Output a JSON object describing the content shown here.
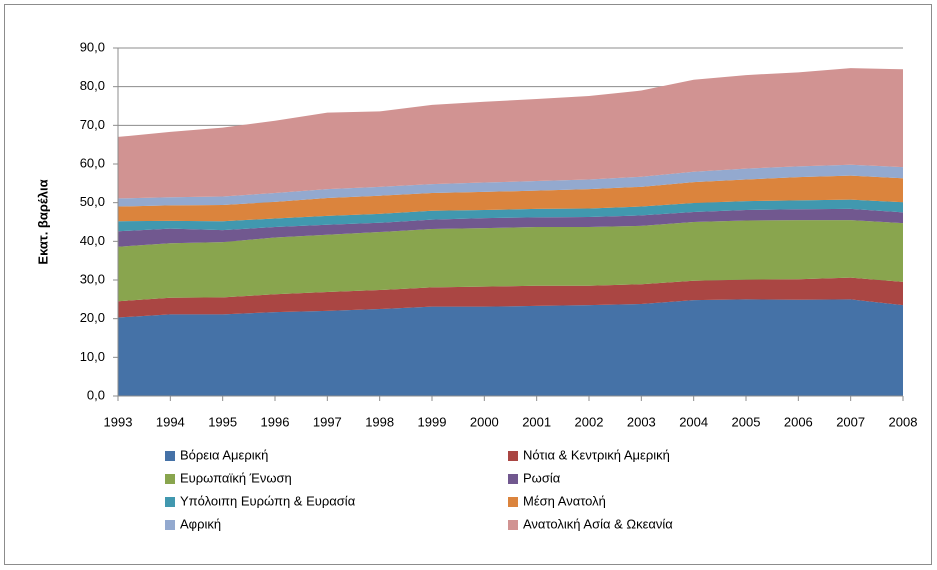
{
  "chart_data": {
    "type": "stacked_area",
    "y_label": "Εκατ. βαρέλια",
    "categories": [
      "1993",
      "1994",
      "1995",
      "1996",
      "1997",
      "1998",
      "1999",
      "2000",
      "2001",
      "2002",
      "2003",
      "2004",
      "2005",
      "2006",
      "2007",
      "2008"
    ],
    "ylim": [
      0,
      90
    ],
    "yticks": [
      {
        "value": 0,
        "label": "0,0"
      },
      {
        "value": 10,
        "label": "10,0"
      },
      {
        "value": 20,
        "label": "20,0"
      },
      {
        "value": 30,
        "label": "30,0"
      },
      {
        "value": 40,
        "label": "40,0"
      },
      {
        "value": 50,
        "label": "50,0"
      },
      {
        "value": 60,
        "label": "60,0"
      },
      {
        "value": 70,
        "label": "70,0"
      },
      {
        "value": 80,
        "label": "80,0"
      },
      {
        "value": 90,
        "label": "90,0"
      }
    ],
    "grid": true,
    "series": [
      {
        "name": "Βόρεια Αμερική",
        "color": "#4572A7",
        "values": [
          20.3,
          21.1,
          21.1,
          21.7,
          22.0,
          22.5,
          23.1,
          23.1,
          23.3,
          23.5,
          23.8,
          24.8,
          25.0,
          24.9,
          25.0,
          23.5
        ]
      },
      {
        "name": "Νότια & Κεντρική Αμερική",
        "color": "#AA4643",
        "values": [
          4.2,
          4.3,
          4.4,
          4.6,
          4.9,
          4.9,
          5.0,
          5.2,
          5.2,
          5.0,
          5.1,
          5.0,
          5.1,
          5.3,
          5.6,
          6.0
        ]
      },
      {
        "name": "Ευρωπαϊκή Ένωση",
        "color": "#89A54E",
        "values": [
          14.1,
          14.1,
          14.3,
          14.7,
          14.8,
          15.0,
          15.1,
          15.1,
          15.2,
          15.2,
          15.1,
          15.2,
          15.3,
          15.3,
          14.9,
          15.2
        ]
      },
      {
        "name": "Ρωσία",
        "color": "#71588F",
        "values": [
          4.0,
          3.8,
          3.1,
          2.7,
          2.6,
          2.4,
          2.4,
          2.6,
          2.5,
          2.6,
          2.7,
          2.6,
          2.7,
          2.8,
          2.9,
          2.8
        ]
      },
      {
        "name": "Υπόλοιπη Ευρώπη  & Ευρασία",
        "color": "#4198AF",
        "values": [
          2.6,
          2.0,
          2.3,
          2.2,
          2.3,
          2.3,
          2.3,
          2.1,
          2.2,
          2.2,
          2.3,
          2.3,
          2.3,
          2.3,
          2.4,
          2.6
        ]
      },
      {
        "name": "Μέση Ανατολή",
        "color": "#DB843D",
        "values": [
          3.8,
          4.0,
          4.2,
          4.3,
          4.6,
          4.7,
          4.6,
          4.7,
          4.7,
          5.0,
          5.1,
          5.4,
          5.6,
          6.0,
          6.2,
          6.2
        ]
      },
      {
        "name": "Αφρική",
        "color": "#93A9CF",
        "values": [
          2.1,
          2.1,
          2.2,
          2.3,
          2.3,
          2.3,
          2.3,
          2.4,
          2.5,
          2.5,
          2.6,
          2.7,
          2.8,
          2.8,
          2.8,
          2.9
        ]
      },
      {
        "name": "Ανατολική Ασία & Ωκεανία",
        "color": "#D19392",
        "values": [
          15.9,
          16.9,
          17.8,
          18.7,
          19.8,
          19.5,
          20.5,
          20.9,
          21.2,
          21.6,
          22.3,
          23.8,
          24.2,
          24.3,
          25.0,
          25.3
        ]
      }
    ]
  }
}
